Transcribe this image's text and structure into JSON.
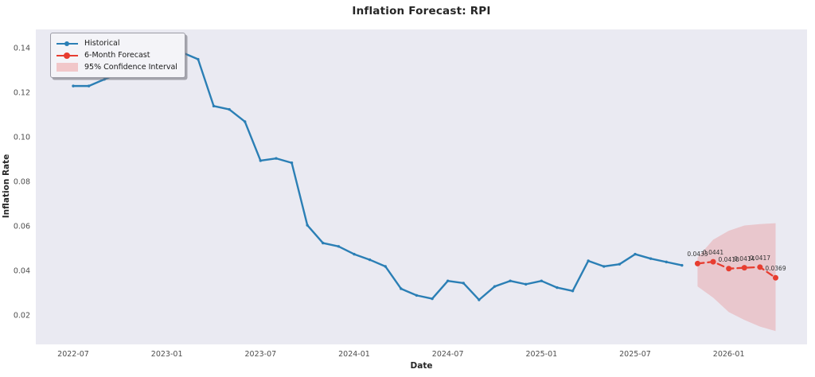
{
  "title": "Inflation Forecast: RPI",
  "colors": {
    "historical_line": "#2b7fb5",
    "forecast_line": "#e73d30",
    "confidence_band": "rgba(230,62,60,0.20)",
    "plot_background": "#eaeaf2",
    "figure_background": "#ffffff",
    "tick_text": "#4d4d4d",
    "title_text": "#262626"
  },
  "legend": {
    "items": [
      {
        "label": "Historical",
        "swatch": "blue-line-with-marker"
      },
      {
        "label": "6-Month Forecast",
        "swatch": "red-line-with-dot"
      },
      {
        "label": "95% Confidence Interval",
        "swatch": "pink-band"
      }
    ]
  },
  "chart_data": {
    "type": "line",
    "title": "Inflation Forecast: RPI",
    "xlabel": "Date",
    "ylabel": "Inflation Rate",
    "grid": false,
    "legend_position": "upper left",
    "ylim": [
      0.007,
      0.1484
    ],
    "y_ticks": [
      0.14,
      0.12,
      0.1,
      0.08,
      0.06,
      0.04,
      0.02
    ],
    "y_tick_labels": [
      "0.14",
      "0.12",
      "0.10",
      "0.08",
      "0.06",
      "0.04",
      "0.02"
    ],
    "x_tick_labels": [
      "2022-07",
      "2023-01",
      "2023-07",
      "2024-01",
      "2024-07",
      "2025-01",
      "2025-07",
      "2026-01"
    ],
    "series": [
      {
        "name": "Historical",
        "style": "solid",
        "x": [
          "2022-07",
          "2022-08",
          "2022-09",
          "2022-10",
          "2022-11",
          "2022-12",
          "2023-01",
          "2023-02",
          "2023-03",
          "2023-04",
          "2023-05",
          "2023-06",
          "2023-07",
          "2023-08",
          "2023-09",
          "2023-10",
          "2023-11",
          "2023-12",
          "2024-01",
          "2024-02",
          "2024-03",
          "2024-04",
          "2024-05",
          "2024-06",
          "2024-07",
          "2024-08",
          "2024-09",
          "2024-10",
          "2024-11",
          "2024-12",
          "2025-01",
          "2025-02",
          "2025-03",
          "2025-04",
          "2025-05",
          "2025-06",
          "2025-07",
          "2025-08",
          "2025-09",
          "2025-10"
        ],
        "y": [
          0.123,
          0.123,
          0.126,
          0.129,
          0.132,
          0.134,
          0.134,
          0.138,
          0.135,
          0.114,
          0.1125,
          0.107,
          0.0895,
          0.0905,
          0.0885,
          0.0605,
          0.0525,
          0.051,
          0.0475,
          0.045,
          0.042,
          0.032,
          0.029,
          0.0275,
          0.0355,
          0.0345,
          0.027,
          0.033,
          0.0355,
          0.034,
          0.0355,
          0.0325,
          0.031,
          0.0445,
          0.042,
          0.043,
          0.0475,
          0.0455,
          0.044,
          0.0425
        ]
      },
      {
        "name": "6-Month Forecast",
        "style": "dashed",
        "x": [
          "2025-11",
          "2025-12",
          "2026-01",
          "2026-02",
          "2026-03",
          "2026-04"
        ],
        "y": [
          0.0433,
          0.0441,
          0.041,
          0.0414,
          0.0417,
          0.0369
        ],
        "point_labels": [
          "0.0433",
          "0.0441",
          "0.0410",
          "0.0414",
          "0.0417",
          "0.0369"
        ]
      },
      {
        "name": "95% Confidence Interval",
        "style": "band",
        "x": [
          "2025-11",
          "2025-12",
          "2026-01",
          "2026-02",
          "2026-03",
          "2026-04"
        ],
        "upper": [
          0.046,
          0.054,
          0.058,
          0.0604,
          0.061,
          0.0614
        ],
        "lower": [
          0.033,
          0.028,
          0.0215,
          0.018,
          0.015,
          0.013
        ]
      }
    ]
  }
}
